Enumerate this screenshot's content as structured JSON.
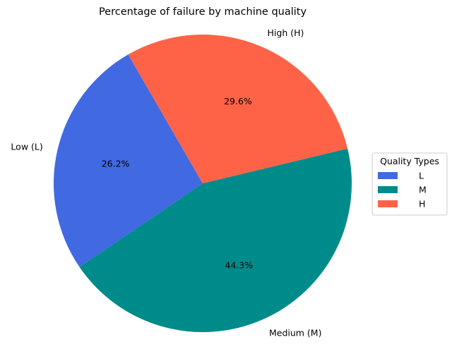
{
  "chart_data": {
    "type": "pie",
    "title": "Percentage of failure by machine quality",
    "categories": [
      "Low (L)",
      "Medium (M)",
      "High (H)"
    ],
    "values": [
      26.2,
      44.3,
      29.6
    ],
    "value_labels": [
      "26.2%",
      "44.3%",
      "29.6%"
    ],
    "colors": [
      "#4169E1",
      "#008B8B",
      "#FF6347"
    ],
    "start_angle_deg": 120,
    "legend": {
      "title": "Quality Types",
      "placement": "right",
      "entries": [
        "L",
        "M",
        "H"
      ]
    }
  }
}
